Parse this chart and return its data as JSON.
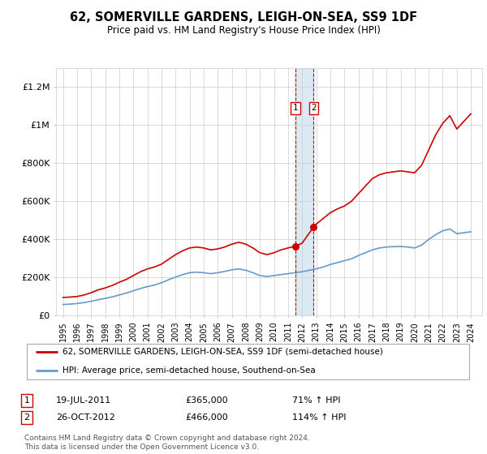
{
  "title": "62, SOMERVILLE GARDENS, LEIGH-ON-SEA, SS9 1DF",
  "subtitle": "Price paid vs. HM Land Registry's House Price Index (HPI)",
  "legend_line1": "62, SOMERVILLE GARDENS, LEIGH-ON-SEA, SS9 1DF (semi-detached house)",
  "legend_line2": "HPI: Average price, semi-detached house, Southend-on-Sea",
  "footer": "Contains HM Land Registry data © Crown copyright and database right 2024.\nThis data is licensed under the Open Government Licence v3.0.",
  "annotation1": [
    "1",
    "19-JUL-2011",
    "£365,000",
    "71% ↑ HPI"
  ],
  "annotation2": [
    "2",
    "26-OCT-2012",
    "£466,000",
    "114% ↑ HPI"
  ],
  "ylim": [
    0,
    1300000
  ],
  "yticks": [
    0,
    200000,
    400000,
    600000,
    800000,
    1000000,
    1200000
  ],
  "ytick_labels": [
    "£0",
    "£200K",
    "£400K",
    "£600K",
    "£800K",
    "£1M",
    "£1.2M"
  ],
  "xmin": 1994.5,
  "xmax": 2024.8,
  "red_line_color": "#cc0000",
  "blue_line_color": "#6699cc",
  "vline_color": "#cc0000",
  "marker1_x": 2011.54,
  "marker2_x": 2012.82,
  "marker1_y": 365000,
  "marker2_y": 466000,
  "red_x": [
    1995.0,
    1995.5,
    1996.0,
    1996.5,
    1997.0,
    1997.5,
    1998.0,
    1998.5,
    1999.0,
    1999.5,
    2000.0,
    2000.5,
    2001.0,
    2001.5,
    2002.0,
    2002.5,
    2003.0,
    2003.5,
    2004.0,
    2004.5,
    2005.0,
    2005.5,
    2006.0,
    2006.5,
    2007.0,
    2007.5,
    2008.0,
    2008.5,
    2009.0,
    2009.5,
    2010.0,
    2010.5,
    2011.0,
    2011.54,
    2012.0,
    2012.82,
    2013.0,
    2013.5,
    2014.0,
    2014.5,
    2015.0,
    2015.5,
    2016.0,
    2016.5,
    2017.0,
    2017.5,
    2018.0,
    2018.5,
    2019.0,
    2019.5,
    2020.0,
    2020.5,
    2021.0,
    2021.5,
    2022.0,
    2022.5,
    2023.0,
    2023.5,
    2024.0
  ],
  "red_y": [
    95000,
    97000,
    100000,
    108000,
    120000,
    135000,
    145000,
    158000,
    175000,
    190000,
    210000,
    230000,
    245000,
    255000,
    270000,
    295000,
    320000,
    340000,
    355000,
    360000,
    355000,
    345000,
    350000,
    360000,
    375000,
    385000,
    375000,
    355000,
    330000,
    320000,
    330000,
    345000,
    355000,
    365000,
    380000,
    466000,
    480000,
    510000,
    540000,
    560000,
    575000,
    600000,
    640000,
    680000,
    720000,
    740000,
    750000,
    755000,
    760000,
    755000,
    750000,
    790000,
    870000,
    950000,
    1010000,
    1050000,
    980000,
    1020000,
    1060000
  ],
  "blue_x": [
    1995.0,
    1995.5,
    1996.0,
    1996.5,
    1997.0,
    1997.5,
    1998.0,
    1998.5,
    1999.0,
    1999.5,
    2000.0,
    2000.5,
    2001.0,
    2001.5,
    2002.0,
    2002.5,
    2003.0,
    2003.5,
    2004.0,
    2004.5,
    2005.0,
    2005.5,
    2006.0,
    2006.5,
    2007.0,
    2007.5,
    2008.0,
    2008.5,
    2009.0,
    2009.5,
    2010.0,
    2010.5,
    2011.0,
    2011.5,
    2012.0,
    2012.5,
    2013.0,
    2013.5,
    2014.0,
    2014.5,
    2015.0,
    2015.5,
    2016.0,
    2016.5,
    2017.0,
    2017.5,
    2018.0,
    2018.5,
    2019.0,
    2019.5,
    2020.0,
    2020.5,
    2021.0,
    2021.5,
    2022.0,
    2022.5,
    2023.0,
    2023.5,
    2024.0
  ],
  "blue_y": [
    58000,
    60000,
    63000,
    68000,
    75000,
    83000,
    90000,
    98000,
    108000,
    118000,
    130000,
    142000,
    152000,
    160000,
    172000,
    188000,
    202000,
    215000,
    225000,
    228000,
    225000,
    220000,
    225000,
    232000,
    240000,
    245000,
    238000,
    225000,
    210000,
    205000,
    210000,
    215000,
    220000,
    225000,
    230000,
    238000,
    245000,
    255000,
    268000,
    278000,
    288000,
    298000,
    315000,
    330000,
    345000,
    355000,
    360000,
    362000,
    363000,
    360000,
    355000,
    370000,
    400000,
    425000,
    445000,
    455000,
    430000,
    435000,
    440000
  ]
}
